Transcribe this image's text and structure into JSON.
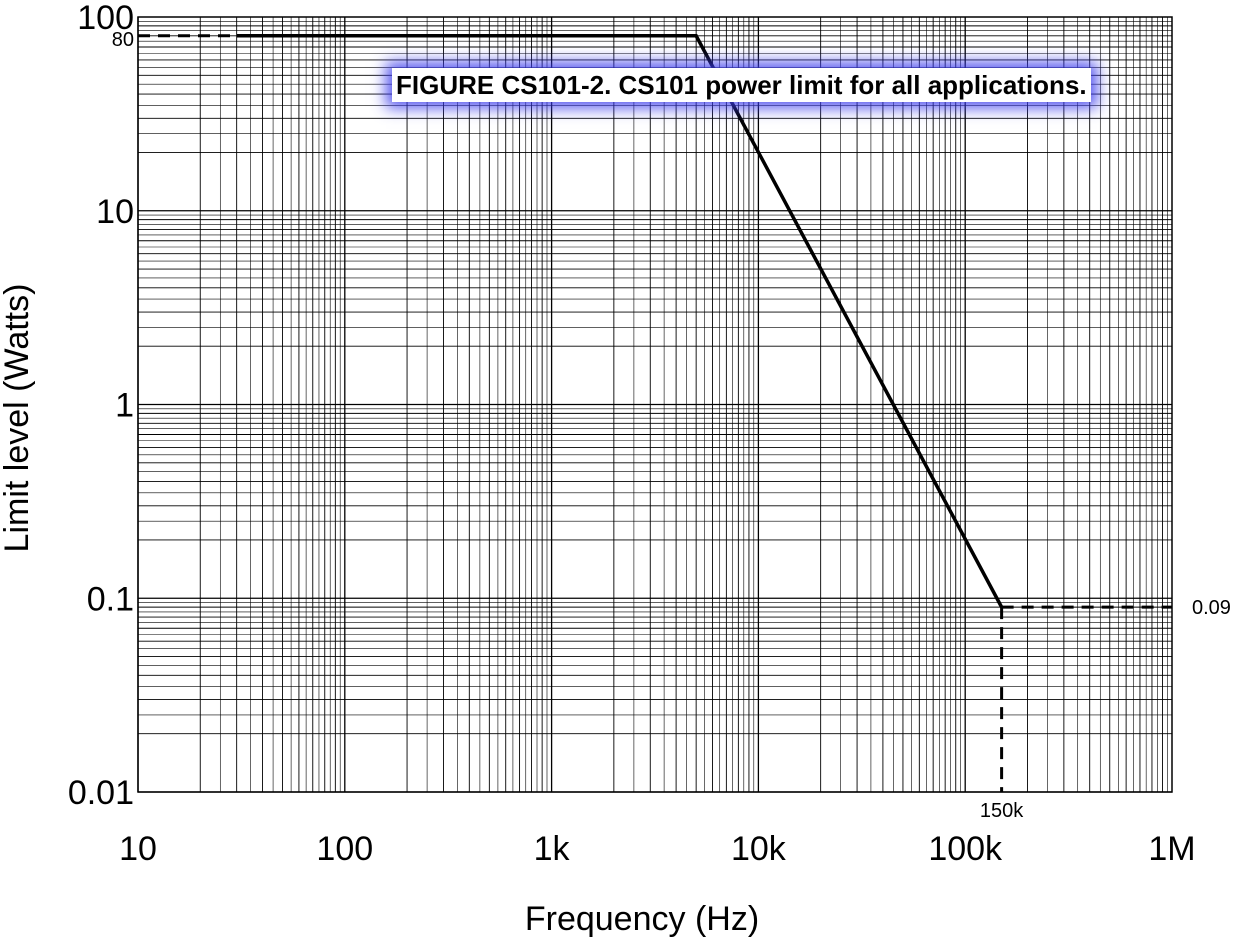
{
  "chart_data": {
    "type": "line",
    "title": "FIGURE CS101-2.  CS101 power limit for all applications.",
    "xlabel": "Frequency (Hz)",
    "ylabel": "Limit level (Watts)",
    "x_scale": "log",
    "y_scale": "log",
    "xlim": [
      10,
      1000000
    ],
    "ylim": [
      0.01,
      100
    ],
    "grid": true,
    "x_ticks": [
      {
        "value": 10,
        "label": "10"
      },
      {
        "value": 100,
        "label": "100"
      },
      {
        "value": 1000,
        "label": "1k"
      },
      {
        "value": 10000,
        "label": "10k"
      },
      {
        "value": 100000,
        "label": "100k"
      },
      {
        "value": 1000000,
        "label": "1M"
      }
    ],
    "y_ticks": [
      {
        "value": 0.01,
        "label": "0.01"
      },
      {
        "value": 0.1,
        "label": "0.1"
      },
      {
        "value": 1,
        "label": "1"
      },
      {
        "value": 10,
        "label": "10"
      },
      {
        "value": 100,
        "label": "100"
      }
    ],
    "series": [
      {
        "x": [
          30,
          5000,
          150000
        ],
        "y": [
          80,
          80,
          0.09
        ]
      }
    ],
    "reference_lines": [
      {
        "x": [
          10,
          30
        ],
        "y": [
          80,
          80
        ],
        "style": "dashed"
      },
      {
        "x": [
          150000,
          1000000
        ],
        "y": [
          0.09,
          0.09
        ],
        "style": "dashed"
      },
      {
        "x": [
          150000,
          150000
        ],
        "y": [
          0.09,
          0.01
        ],
        "style": "dashed"
      }
    ],
    "annotations": [
      {
        "text": "80",
        "x": 10,
        "y": 80
      },
      {
        "text": "0.09",
        "x": 1000000,
        "y": 0.09
      },
      {
        "text": "150k",
        "x": 150000,
        "y": 0.01
      }
    ],
    "colors": {
      "line": "#000000",
      "grid": "#000000",
      "caption_glow": "#3c3ceb"
    }
  }
}
